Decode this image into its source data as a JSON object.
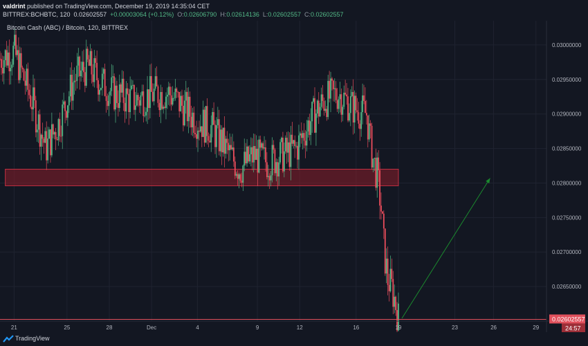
{
  "header": {
    "publisher": "valdrint",
    "published_text": "published on TradingView.com, December 19, 2019 14:35:04 CET",
    "symbol": "BITTREX:BCHBTC, 120",
    "last_price": "0.02602557",
    "change": "+0.00003064 (+0.12%)",
    "open_label": "O:",
    "open": "0.02606790",
    "high_label": "H:",
    "high": "0.02614136",
    "low_label": "L:",
    "low": "0.02602557",
    "close_label": "C:",
    "close": "0.02602557"
  },
  "chart_title": "Bitcoin Cash (ABC) / Bitcoin, 120, BITTREX",
  "footer": {
    "brand": "TradingView"
  },
  "colors": {
    "background": "#131722",
    "up": "#53b987",
    "down": "#eb4d5c",
    "zone": "#8b1e2a",
    "arrow": "#1b8a2e",
    "price_tag": "#e0505c"
  },
  "chart_data": {
    "type": "candlestick",
    "title": "Bitcoin Cash (ABC) / Bitcoin, 120, BITTREX",
    "ylim": [
      0.026,
      0.03035
    ],
    "yticks": [
      "0.03000000",
      "0.02950000",
      "0.02900000",
      "0.02850000",
      "0.02800000",
      "0.02750000",
      "0.02700000",
      "0.02650000"
    ],
    "xticks": [
      "21",
      "25",
      "28",
      "Dec",
      "4",
      "9",
      "12",
      "16",
      "19",
      "23",
      "26",
      "29"
    ],
    "current_price_label": "0.02602557",
    "countdown_label": "24:57",
    "path": [
      [
        0,
        0.0298
      ],
      [
        4,
        0.0299
      ],
      [
        9,
        0.0292
      ],
      [
        13,
        0.0285
      ],
      [
        17,
        0.0289
      ],
      [
        21,
        0.0295
      ],
      [
        25,
        0.0297
      ],
      [
        28,
        0.0295
      ],
      [
        32,
        0.0293
      ],
      [
        38,
        0.0292
      ],
      [
        44,
        0.0293
      ],
      [
        48,
        0.0293
      ],
      [
        52,
        0.0291
      ],
      [
        56,
        0.0289
      ],
      [
        60,
        0.0288
      ],
      [
        64,
        0.0285
      ],
      [
        68,
        0.0282
      ],
      [
        72,
        0.0284
      ],
      [
        76,
        0.0283
      ],
      [
        80,
        0.0284
      ],
      [
        84,
        0.0285
      ],
      [
        88,
        0.0289
      ],
      [
        92,
        0.0292
      ],
      [
        96,
        0.0293
      ],
      [
        100,
        0.0291
      ],
      [
        104,
        0.029
      ],
      [
        105,
        0.0286
      ],
      [
        106,
        0.0283
      ],
      [
        107,
        0.0281
      ],
      [
        108,
        0.0277
      ],
      [
        109,
        0.027
      ],
      [
        110,
        0.0266
      ],
      [
        111,
        0.0265
      ],
      [
        112,
        0.0263
      ],
      [
        113,
        0.02603
      ]
    ],
    "zone": {
      "x_start": 1.5,
      "x_end": 113,
      "y_low": 0.02796,
      "y_high": 0.0282
    },
    "arrow": {
      "from": [
        114,
        0.02604
      ],
      "to": [
        139,
        0.02807
      ]
    }
  }
}
